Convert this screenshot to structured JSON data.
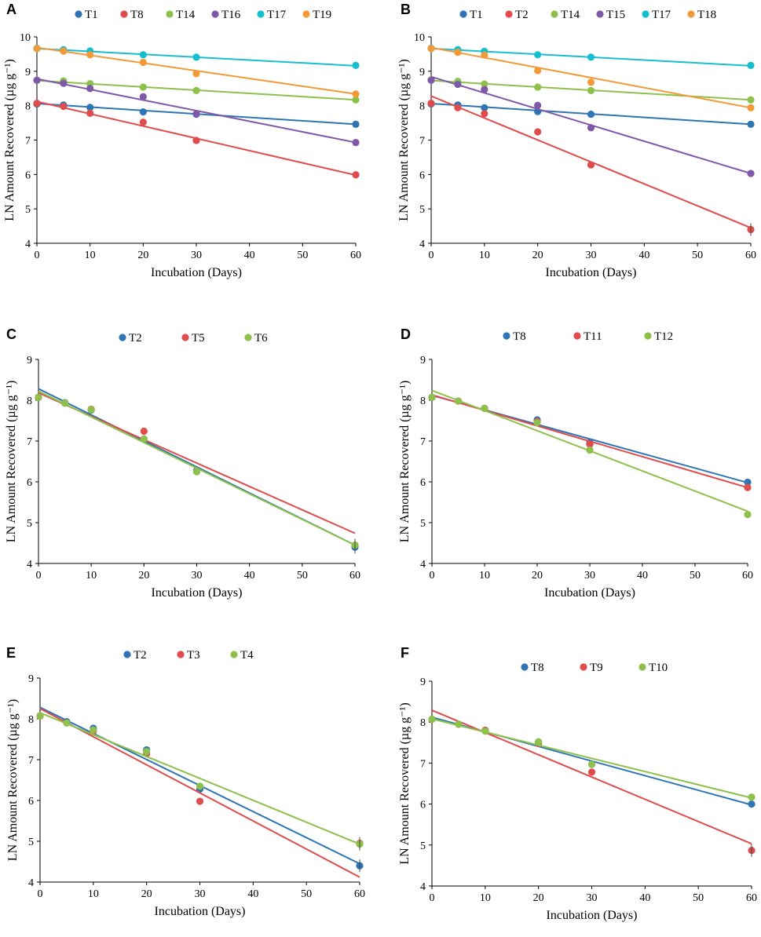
{
  "colors": {
    "blue": "#2E75B6",
    "red": "#E04B4B",
    "green": "#8DC14B",
    "purple": "#7F58A8",
    "cyan": "#17BECF",
    "orange": "#F39A38"
  },
  "chart_data": [
    {
      "type": "scatter",
      "panel": "A",
      "xlabel": "Incubation (Days)",
      "ylabel": "LN Amount Recovered (µg g⁻¹)",
      "xlim": [
        0,
        60
      ],
      "ylim": [
        4,
        10
      ],
      "xticks": [
        0,
        10,
        20,
        30,
        40,
        50,
        60
      ],
      "yticks": [
        4,
        5,
        6,
        7,
        8,
        9,
        10
      ],
      "x": [
        0,
        5,
        10,
        20,
        30,
        60
      ],
      "series": [
        {
          "name": "T1",
          "color": "blue",
          "values": [
            8.05,
            8.02,
            7.95,
            7.82,
            7.75,
            7.46
          ],
          "fit": [
            8.06,
            7.46
          ]
        },
        {
          "name": "T8",
          "color": "red",
          "values": [
            8.07,
            7.98,
            7.78,
            7.52,
            6.99,
            5.99
          ],
          "fit": [
            8.12,
            5.98
          ]
        },
        {
          "name": "T14",
          "color": "green",
          "values": [
            8.74,
            8.72,
            8.64,
            8.54,
            8.44,
            8.17
          ],
          "fit": [
            8.73,
            8.17
          ]
        },
        {
          "name": "T16",
          "color": "purple",
          "values": [
            8.74,
            8.65,
            8.5,
            8.26,
            7.76,
            6.93
          ],
          "fit": [
            8.78,
            6.93
          ]
        },
        {
          "name": "T17",
          "color": "cyan",
          "values": [
            9.67,
            9.63,
            9.59,
            9.48,
            9.41,
            9.17
          ],
          "fit": [
            9.66,
            9.16
          ]
        },
        {
          "name": "T19",
          "color": "orange",
          "values": [
            9.66,
            9.59,
            9.48,
            9.26,
            8.93,
            8.34
          ],
          "fit": [
            9.69,
            8.34
          ]
        }
      ]
    },
    {
      "type": "scatter",
      "panel": "B",
      "xlabel": "Incubation (Days)",
      "ylabel": "LN Amount Recovered (µg g⁻¹)",
      "xlim": [
        0,
        60
      ],
      "ylim": [
        4,
        10
      ],
      "xticks": [
        0,
        10,
        20,
        30,
        40,
        50,
        60
      ],
      "yticks": [
        4,
        5,
        6,
        7,
        8,
        9,
        10
      ],
      "x": [
        0,
        5,
        10,
        20,
        30,
        60
      ],
      "series": [
        {
          "name": "T1",
          "color": "blue",
          "values": [
            8.05,
            8.02,
            7.94,
            7.83,
            7.75,
            7.46
          ],
          "fit": [
            8.06,
            7.46
          ]
        },
        {
          "name": "T2",
          "color": "red",
          "values": [
            8.07,
            7.94,
            7.77,
            7.24,
            6.28,
            4.4
          ],
          "fit": [
            8.28,
            4.45
          ]
        },
        {
          "name": "T14",
          "color": "green",
          "values": [
            8.75,
            8.71,
            8.63,
            8.54,
            8.44,
            8.17
          ],
          "fit": [
            8.73,
            8.17
          ]
        },
        {
          "name": "T15",
          "color": "purple",
          "values": [
            8.74,
            8.62,
            8.47,
            8.01,
            7.36,
            6.03
          ],
          "fit": [
            8.84,
            6.03
          ]
        },
        {
          "name": "T17",
          "color": "cyan",
          "values": [
            9.67,
            9.63,
            9.58,
            9.48,
            9.41,
            9.17
          ],
          "fit": [
            9.66,
            9.16
          ]
        },
        {
          "name": "T18",
          "color": "orange",
          "values": [
            9.66,
            9.55,
            9.47,
            9.02,
            8.68,
            7.94
          ],
          "fit": [
            9.69,
            7.94
          ]
        }
      ]
    },
    {
      "type": "scatter",
      "panel": "C",
      "xlabel": "Incubation (Days)",
      "ylabel": "LN Amount Recovered (µg g⁻¹)",
      "xlim": [
        0,
        60
      ],
      "ylim": [
        4,
        9
      ],
      "xticks": [
        0,
        10,
        20,
        30,
        40,
        50,
        60
      ],
      "yticks": [
        4,
        5,
        6,
        7,
        8,
        9
      ],
      "x": [
        0,
        5,
        10,
        20,
        30,
        60
      ],
      "series": [
        {
          "name": "T2",
          "color": "blue",
          "values": [
            8.07,
            7.94,
            7.76,
            7.05,
            6.28,
            4.4
          ],
          "fit": [
            8.28,
            4.45
          ]
        },
        {
          "name": "T5",
          "color": "red",
          "values": [
            8.07,
            7.93,
            7.78,
            7.24,
            6.25,
            4.45
          ],
          "fit": [
            8.18,
            4.74
          ]
        },
        {
          "name": "T6",
          "color": "green",
          "values": [
            8.07,
            7.93,
            7.77,
            7.05,
            6.25,
            4.45
          ],
          "fit": [
            8.22,
            4.45
          ]
        }
      ]
    },
    {
      "type": "scatter",
      "panel": "D",
      "xlabel": "Incubation (Days)",
      "ylabel": "LN Amount Recovered (µg g⁻¹)",
      "xlim": [
        0,
        60
      ],
      "ylim": [
        4,
        9
      ],
      "xticks": [
        0,
        10,
        20,
        30,
        40,
        50,
        60
      ],
      "yticks": [
        4,
        5,
        6,
        7,
        8,
        9
      ],
      "x": [
        0,
        5,
        10,
        20,
        30,
        60
      ],
      "series": [
        {
          "name": "T8",
          "color": "blue",
          "values": [
            8.07,
            7.98,
            7.8,
            7.52,
            6.96,
            5.99
          ],
          "fit": [
            8.12,
            5.98
          ]
        },
        {
          "name": "T11",
          "color": "red",
          "values": [
            8.07,
            7.98,
            7.8,
            7.48,
            6.92,
            5.86
          ],
          "fit": [
            8.13,
            5.86
          ]
        },
        {
          "name": "T12",
          "color": "green",
          "values": [
            8.07,
            7.98,
            7.8,
            7.45,
            6.78,
            5.2
          ],
          "fit": [
            8.24,
            5.28
          ]
        }
      ]
    },
    {
      "type": "scatter",
      "panel": "E",
      "xlabel": "Incubation (Days)",
      "ylabel": "LN Amount Recovered (µg g⁻¹)",
      "xlim": [
        0,
        60
      ],
      "ylim": [
        4,
        9
      ],
      "xticks": [
        0,
        10,
        20,
        30,
        40,
        50,
        60
      ],
      "yticks": [
        4,
        5,
        6,
        7,
        8,
        9
      ],
      "x": [
        0,
        5,
        10,
        20,
        30,
        60
      ],
      "series": [
        {
          "name": "T2",
          "color": "blue",
          "values": [
            8.07,
            7.93,
            7.77,
            7.24,
            6.28,
            4.4
          ],
          "fit": [
            8.28,
            4.45
          ]
        },
        {
          "name": "T3",
          "color": "red",
          "values": [
            8.07,
            7.9,
            7.7,
            7.15,
            5.98,
            4.95
          ],
          "fit": [
            8.25,
            4.12
          ]
        },
        {
          "name": "T4",
          "color": "green",
          "values": [
            8.07,
            7.9,
            7.73,
            7.2,
            6.35,
            4.93
          ],
          "fit": [
            8.15,
            4.93
          ]
        }
      ]
    },
    {
      "type": "scatter",
      "panel": "F",
      "xlabel": "Incubation (Days)",
      "ylabel": "LN Amount Recovered (µg g⁻¹)",
      "xlim": [
        0,
        60
      ],
      "ylim": [
        4,
        9
      ],
      "xticks": [
        0,
        10,
        20,
        30,
        40,
        50,
        60
      ],
      "yticks": [
        4,
        5,
        6,
        7,
        8,
        9
      ],
      "x": [
        0,
        5,
        10,
        20,
        30,
        60
      ],
      "series": [
        {
          "name": "T8",
          "color": "blue",
          "values": [
            8.07,
            7.95,
            7.8,
            7.5,
            6.97,
            6.0
          ],
          "fit": [
            8.12,
            5.98
          ]
        },
        {
          "name": "T9",
          "color": "red",
          "values": [
            8.07,
            7.95,
            7.8,
            7.48,
            6.78,
            4.87
          ],
          "fit": [
            8.29,
            5.03
          ]
        },
        {
          "name": "T10",
          "color": "green",
          "values": [
            8.07,
            7.95,
            7.78,
            7.52,
            6.97,
            6.17
          ],
          "fit": [
            8.08,
            6.15
          ]
        }
      ]
    }
  ]
}
